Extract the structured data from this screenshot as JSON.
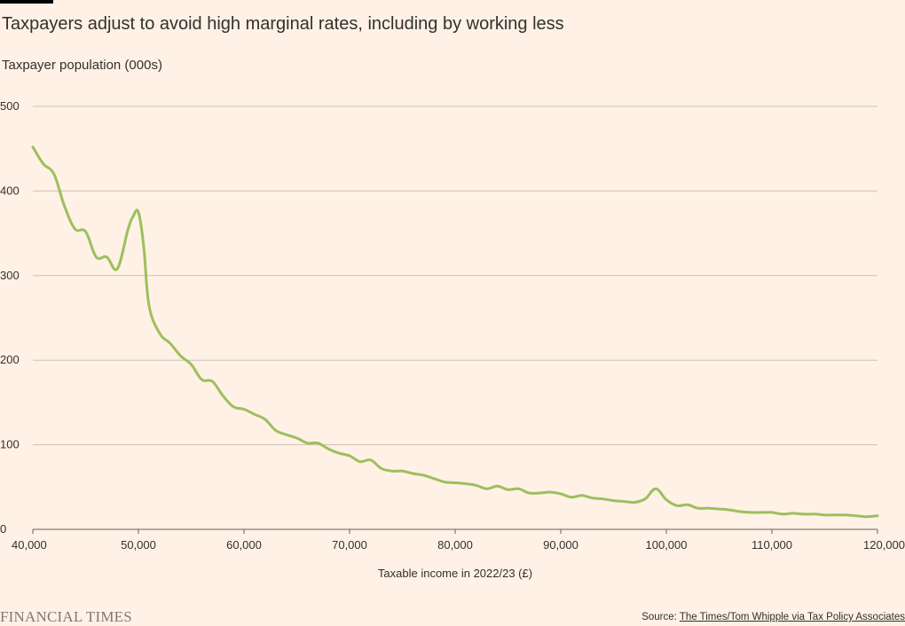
{
  "header": {
    "title": "Taxpayers adjust to avoid high marginal rates, including by working less",
    "subtitle": "Taxpayer population (000s)"
  },
  "footer": {
    "logo": "FINANCIAL TIMES",
    "source_prefix": "Source: ",
    "source_link": "The Times/Tom Whipple via Tax Policy Associates"
  },
  "colors": {
    "line": "#9dbf5e",
    "grid": "#ccc1b7",
    "background": "#fff1e5"
  },
  "chart_data": {
    "type": "line",
    "title": "Taxpayers adjust to avoid high marginal rates, including by working less",
    "xlabel": "Taxable income in 2022/23 (£)",
    "ylabel": "Taxpayer population (000s)",
    "xlim": [
      40000,
      120000
    ],
    "ylim": [
      0,
      500
    ],
    "xticks": [
      40000,
      50000,
      60000,
      70000,
      80000,
      90000,
      100000,
      110000,
      120000
    ],
    "xtick_labels": [
      "40,000",
      "50,000",
      "60,000",
      "70,000",
      "80,000",
      "90,000",
      "100,000",
      "110,000",
      "120,000"
    ],
    "yticks": [
      0,
      100,
      200,
      300,
      400,
      500
    ],
    "ytick_labels": [
      "0",
      "100",
      "200",
      "300",
      "400",
      "500"
    ],
    "grid": true,
    "series": [
      {
        "name": "Taxpayer population",
        "x": [
          40000,
          41000,
          42000,
          43000,
          44000,
          45000,
          46000,
          47000,
          48000,
          49000,
          49500,
          50000,
          50500,
          51000,
          52000,
          53000,
          54000,
          55000,
          56000,
          57000,
          58000,
          59000,
          60000,
          61000,
          62000,
          63000,
          64000,
          65000,
          66000,
          67000,
          68000,
          69000,
          70000,
          71000,
          72000,
          73000,
          74000,
          75000,
          76000,
          77000,
          78000,
          79000,
          80000,
          81000,
          82000,
          83000,
          84000,
          85000,
          86000,
          87000,
          88000,
          89000,
          90000,
          91000,
          92000,
          93000,
          94000,
          95000,
          96000,
          97000,
          98000,
          99000,
          100000,
          101000,
          102000,
          103000,
          104000,
          105000,
          106000,
          107000,
          108000,
          109000,
          110000,
          111000,
          112000,
          113000,
          114000,
          115000,
          116000,
          117000,
          118000,
          119000,
          120000
        ],
        "values": [
          452,
          432,
          420,
          382,
          355,
          352,
          322,
          322,
          308,
          354,
          370,
          375,
          335,
          265,
          232,
          220,
          205,
          195,
          177,
          175,
          158,
          145,
          142,
          136,
          130,
          117,
          112,
          108,
          102,
          102,
          95,
          90,
          87,
          80,
          82,
          72,
          69,
          69,
          66,
          64,
          60,
          56,
          55,
          54,
          52,
          48,
          51,
          47,
          48,
          43,
          43,
          44,
          42,
          38,
          40,
          37,
          36,
          34,
          33,
          32,
          36,
          48,
          35,
          28,
          29,
          25,
          25,
          24,
          23,
          21,
          20,
          20,
          20,
          18,
          19,
          18,
          18,
          17,
          17,
          17,
          16,
          15,
          16
        ]
      }
    ]
  }
}
